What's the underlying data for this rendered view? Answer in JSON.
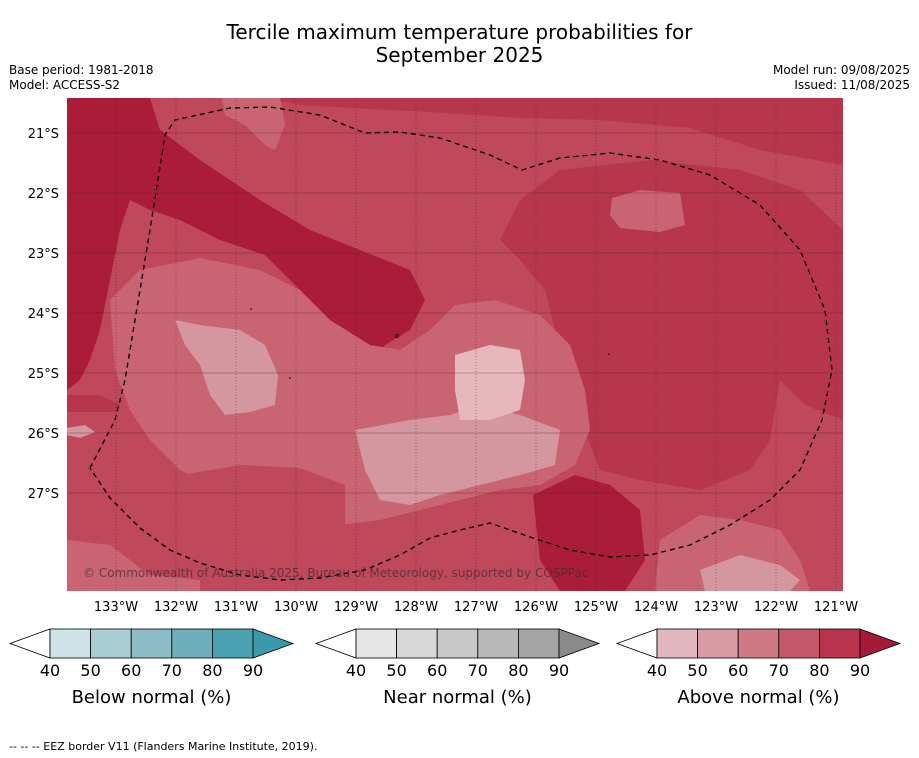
{
  "title_line1": "Tercile maximum temperature probabilities for",
  "title_line2": "September 2025",
  "base_period": "Base period: 1981-2018",
  "model": "Model: ACCESS-S2",
  "model_run": "Model run: 09/08/2025",
  "issued": "Issued: 11/08/2025",
  "copyright": "© Commonwealth of Australia 2025, Bureau of Meteorology, supported by COSPPac",
  "footer": "--  --  -- EEZ border V11 (Flanders Marine Institute, 2019).",
  "map": {
    "lat_labels": [
      "21°S",
      "22°S",
      "23°S",
      "24°S",
      "25°S",
      "26°S",
      "27°S"
    ],
    "lon_labels": [
      "133°W",
      "132°W",
      "131°W",
      "130°W",
      "129°W",
      "128°W",
      "127°W",
      "126°W",
      "125°W",
      "124°W",
      "123°W",
      "122°W",
      "121°W"
    ],
    "colors": {
      "above_50_60": "#d4969f",
      "above_60_70": "#c96573",
      "above_70_80": "#c0485b",
      "above_80_90": "#b8364c",
      "above_90": "#ab1c39",
      "near_light": "#e6b8bd"
    }
  },
  "colorbars": [
    {
      "title": "Below normal (%)",
      "ticks": [
        "40",
        "50",
        "60",
        "70",
        "80",
        "90"
      ],
      "colors": [
        "#cde3e8",
        "#aacdd3",
        "#8cbdc6",
        "#6eaeba",
        "#4aa1b0"
      ],
      "max_color": "#3a9aac"
    },
    {
      "title": "Near normal (%)",
      "ticks": [
        "40",
        "50",
        "60",
        "70",
        "80",
        "90"
      ],
      "colors": [
        "#e6e6e6",
        "#d8d8d8",
        "#c8c8c8",
        "#b8b8b8",
        "#a4a4a4"
      ],
      "max_color": "#8a8a8a"
    },
    {
      "title": "Above normal (%)",
      "ticks": [
        "40",
        "50",
        "60",
        "70",
        "80",
        "90"
      ],
      "colors": [
        "#e2b7bf",
        "#d89aa4",
        "#cf7984",
        "#c4596a",
        "#b8344d"
      ],
      "max_color": "#a51a38"
    }
  ]
}
